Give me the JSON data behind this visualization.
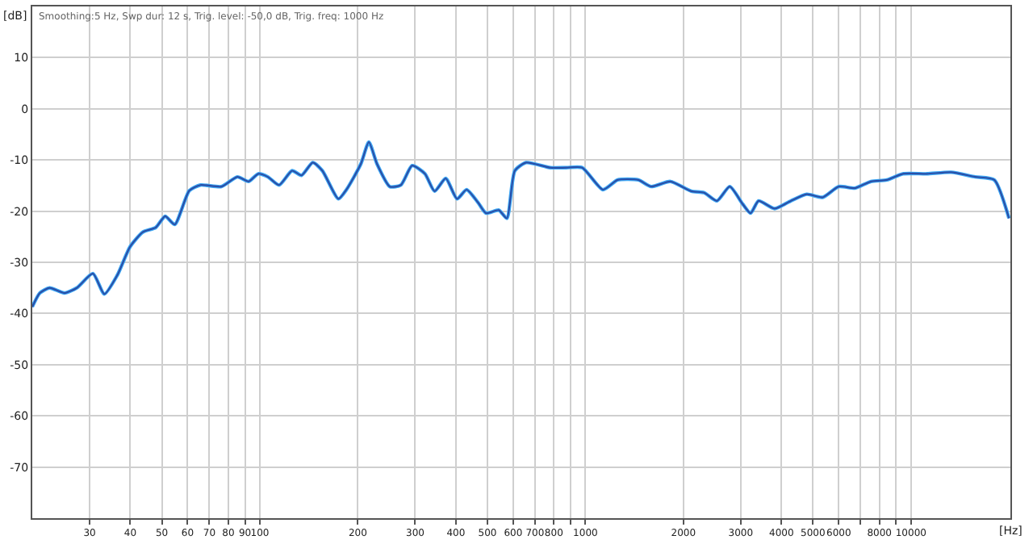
{
  "chart_data": {
    "type": "line",
    "xlabel": "[Hz]",
    "ylabel": "[dB]",
    "log": "x",
    "grid": true,
    "marker": "none",
    "line_style": "solid",
    "annotations": [
      "Smoothing:5 Hz, Swp dur: 12 s, Trig. level: -50,0 dB, Trig. freq: 1000 Hz"
    ],
    "xlim": [
      20,
      20200
    ],
    "ylim": [
      -80,
      20
    ],
    "xticks": [
      30,
      40,
      50,
      60,
      70,
      80,
      90,
      100,
      200,
      300,
      400,
      500,
      600,
      700,
      800,
      {
        "value": 900,
        "label": null
      },
      1000,
      2000,
      3000,
      4000,
      5000,
      6000,
      {
        "value": 7000,
        "label": null
      },
      8000,
      {
        "value": 9000,
        "label": null
      },
      10000
    ],
    "yticks": [
      10,
      0,
      -10,
      -20,
      -30,
      -40,
      -50,
      -60,
      -70
    ],
    "x": [
      20,
      21.1,
      22.6,
      25.1,
      27.4,
      30.7,
      33.3,
      36.5,
      39.9,
      43.7,
      47.9,
      51.2,
      54.8,
      60.7,
      65.7,
      76.2,
      85.3,
      92.4,
      98.9,
      105.8,
      114.6,
      125.6,
      134.3,
      145.4,
      155.6,
      174.3,
      184.5,
      204.2,
      216.2,
      229.1,
      250.7,
      271.2,
      293.6,
      321.4,
      344.2,
      372.3,
      403.4,
      431.5,
      467.7,
      495.2,
      542,
      573.8,
      607,
      657.7,
      779.8,
      873.6,
      977.8,
      1132,
      1256,
      1454,
      1592,
      1824,
      2114,
      2316,
      2535,
      2775,
      3040,
      3216,
      3403,
      3811,
      4273,
      4786,
      5358,
      6000,
      6731,
      7535,
      8435,
      9441,
      11194,
      13275,
      15740,
      18030,
      20000
    ],
    "series": [
      {
        "color": "#3fa9f5",
        "values": [
          -38.7,
          -36,
          -35,
          -36,
          -35,
          -32.2,
          -36.2,
          -32.5,
          -27,
          -24.1,
          -23.2,
          -21,
          -22.6,
          -16,
          -14.9,
          -15.2,
          -13.3,
          -14.2,
          -12.7,
          -13.3,
          -14.9,
          -12.1,
          -13,
          -10.5,
          -12.1,
          -17.6,
          -15.8,
          -10.8,
          -6.5,
          -10.8,
          -15.2,
          -14.9,
          -11.1,
          -12.7,
          -16.1,
          -13.6,
          -17.6,
          -15.8,
          -18.3,
          -20.4,
          -19.8,
          -21.4,
          -12.1,
          -10.5,
          -11.5,
          -11.5,
          -11.5,
          -15.8,
          -13.9,
          -13.9,
          -15.2,
          -14.2,
          -16.1,
          -16.4,
          -18,
          -15.2,
          -18.6,
          -20.4,
          -18,
          -19.5,
          -18,
          -16.7,
          -17.3,
          -15.2,
          -15.5,
          -14.2,
          -13.9,
          -12.7,
          -12.7,
          -12.4,
          -13.3,
          -13.9,
          -21.4
        ]
      },
      {
        "color": "#2a4fa8",
        "values": [
          -38.7,
          -36,
          -35,
          -36,
          -35,
          -32.2,
          -36.2,
          -32.5,
          -27,
          -24.1,
          -23.2,
          -21,
          -22.6,
          -16,
          -14.9,
          -15.2,
          -13.3,
          -14.2,
          -12.7,
          -13.3,
          -14.9,
          -12.1,
          -13,
          -10.5,
          -12.1,
          -17.6,
          -15.8,
          -10.8,
          -6.5,
          -10.8,
          -15.2,
          -14.9,
          -11.1,
          -12.7,
          -16.1,
          -13.6,
          -17.6,
          -15.8,
          -18.3,
          -20.4,
          -19.8,
          -21.4,
          -12.1,
          -10.5,
          -11.5,
          -11.5,
          -11.5,
          -15.8,
          -13.9,
          -13.9,
          -15.2,
          -14.2,
          -16.1,
          -16.4,
          -18,
          -15.2,
          -18.6,
          -20.4,
          -18,
          -19.5,
          -18,
          -16.7,
          -17.3,
          -15.2,
          -15.5,
          -14.2,
          -13.9,
          -12.7,
          -12.7,
          -12.4,
          -13.3,
          -13.9,
          -21.4
        ]
      }
    ]
  }
}
